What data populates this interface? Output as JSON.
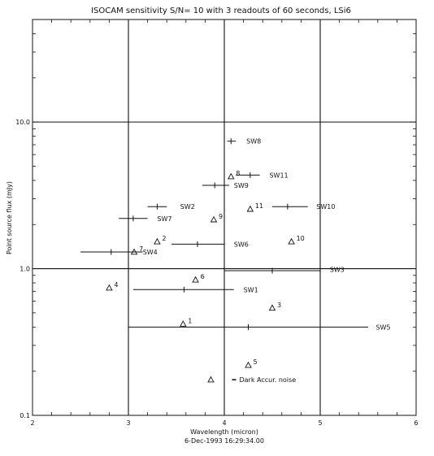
{
  "chart_data": {
    "type": "scatter",
    "title": "ISOCAM sensitivity S/N= 10 with 3 readouts of 60 seconds, LSi6",
    "xlabel": "Wavelength (micron)",
    "ylabel": "Point source flux (mJy)",
    "footer": "6-Dec-1993 16:29:34.00",
    "xlim": [
      2,
      6
    ],
    "ylim": [
      0.1,
      50
    ],
    "y_scale": "log",
    "grid": true,
    "x_grid": [
      3,
      4,
      5
    ],
    "y_grid": [
      1.0,
      10.0
    ],
    "x_tick_labels": [
      "2",
      "3",
      "4",
      "5",
      "6"
    ],
    "y_tick_labels": [
      "0.1",
      "1.0",
      "10.0"
    ],
    "filters": [
      {
        "label": "SW1",
        "center": 3.58,
        "x_min": 3.05,
        "x_max": 4.1,
        "flux": 0.72
      },
      {
        "label": "SW2",
        "center": 3.3,
        "x_min": 3.2,
        "x_max": 3.4,
        "flux": 2.65
      },
      {
        "label": "SW3",
        "center": 4.5,
        "x_min": 4.0,
        "x_max": 5.0,
        "flux": 0.97
      },
      {
        "label": "SW4",
        "center": 2.82,
        "x_min": 2.5,
        "x_max": 3.15,
        "flux": 1.3
      },
      {
        "label": "SW5",
        "center": 4.25,
        "x_min": 3.0,
        "x_max": 5.5,
        "flux": 0.4
      },
      {
        "label": "SW6",
        "center": 3.72,
        "x_min": 3.45,
        "x_max": 4.0,
        "flux": 1.47
      },
      {
        "label": "SW7",
        "center": 3.05,
        "x_min": 2.9,
        "x_max": 3.2,
        "flux": 2.2
      },
      {
        "label": "SW8",
        "center": 4.07,
        "x_min": 4.03,
        "x_max": 4.12,
        "flux": 7.4
      },
      {
        "label": "SW9",
        "center": 3.9,
        "x_min": 3.77,
        "x_max": 4.05,
        "flux": 3.7
      },
      {
        "label": "SW10",
        "center": 4.66,
        "x_min": 4.5,
        "x_max": 4.87,
        "flux": 2.65
      },
      {
        "label": "SW11",
        "center": 4.27,
        "x_min": 4.12,
        "x_max": 4.37,
        "flux": 4.35
      }
    ],
    "lines": [
      {
        "label": "1",
        "x": 3.57,
        "flux": 0.42
      },
      {
        "label": "2",
        "x": 3.3,
        "flux": 1.53
      },
      {
        "label": "3",
        "x": 4.5,
        "flux": 0.54
      },
      {
        "label": "4",
        "x": 2.8,
        "flux": 0.74
      },
      {
        "label": "5",
        "x": 4.25,
        "flux": 0.22
      },
      {
        "label": "6",
        "x": 3.7,
        "flux": 0.84
      },
      {
        "label": "7",
        "x": 3.06,
        "flux": 1.3
      },
      {
        "label": "8",
        "x": 4.07,
        "flux": 4.25
      },
      {
        "label": "9",
        "x": 3.89,
        "flux": 2.16
      },
      {
        "label": "10",
        "x": 4.7,
        "flux": 1.53
      },
      {
        "label": "11",
        "x": 4.27,
        "flux": 2.55
      }
    ],
    "dark_noise": {
      "label": "Dark Accur. noise",
      "x": 3.86,
      "flux": 0.175
    }
  }
}
